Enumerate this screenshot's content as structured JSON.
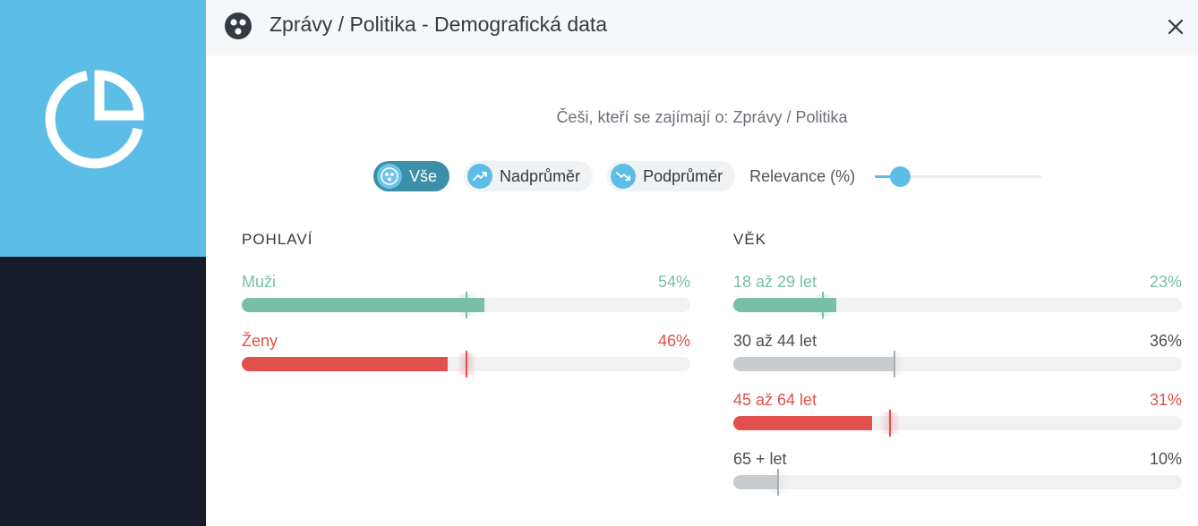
{
  "header": {
    "title": "Zprávy / Politika - Demografická data",
    "icon": "audience-icon",
    "close_symbol": "✕"
  },
  "subtitle": "Češi, kteří se zajímají o: Zprávy / Politika",
  "filters": {
    "items": [
      {
        "label": "Vše",
        "icon": "audience-icon",
        "active": true
      },
      {
        "label": "Nadprůměr",
        "icon": "trend-up-icon",
        "active": false
      },
      {
        "label": "Podprůměr",
        "icon": "trend-down-icon",
        "active": false
      }
    ],
    "relevance_label": "Relevance (%)",
    "relevance_level": 0.15
  },
  "colors": {
    "above": "#79bfa8",
    "below": "#e0504c",
    "neutral": "#c8cbce",
    "accent": "#5cbde6",
    "sidebar_top": "#5cbde6",
    "sidebar_bottom": "#171b2a"
  },
  "gender": {
    "title": "POHLAVÍ",
    "rows": [
      {
        "label": "Muži",
        "value_text": "54%",
        "value": 54,
        "status": "above"
      },
      {
        "label": "Ženy",
        "value_text": "46%",
        "value": 46,
        "status": "below"
      }
    ]
  },
  "age": {
    "title": "VĚK",
    "rows": [
      {
        "label": "18 až 29 let",
        "value_text": "23%",
        "value": 23,
        "status": "above"
      },
      {
        "label": "30 až 44 let",
        "value_text": "36%",
        "value": 36,
        "status": "neutral"
      },
      {
        "label": "45 až 64 let",
        "value_text": "31%",
        "value": 31,
        "status": "below"
      },
      {
        "label": "65 + let",
        "value_text": "10%",
        "value": 10,
        "status": "neutral"
      }
    ]
  }
}
